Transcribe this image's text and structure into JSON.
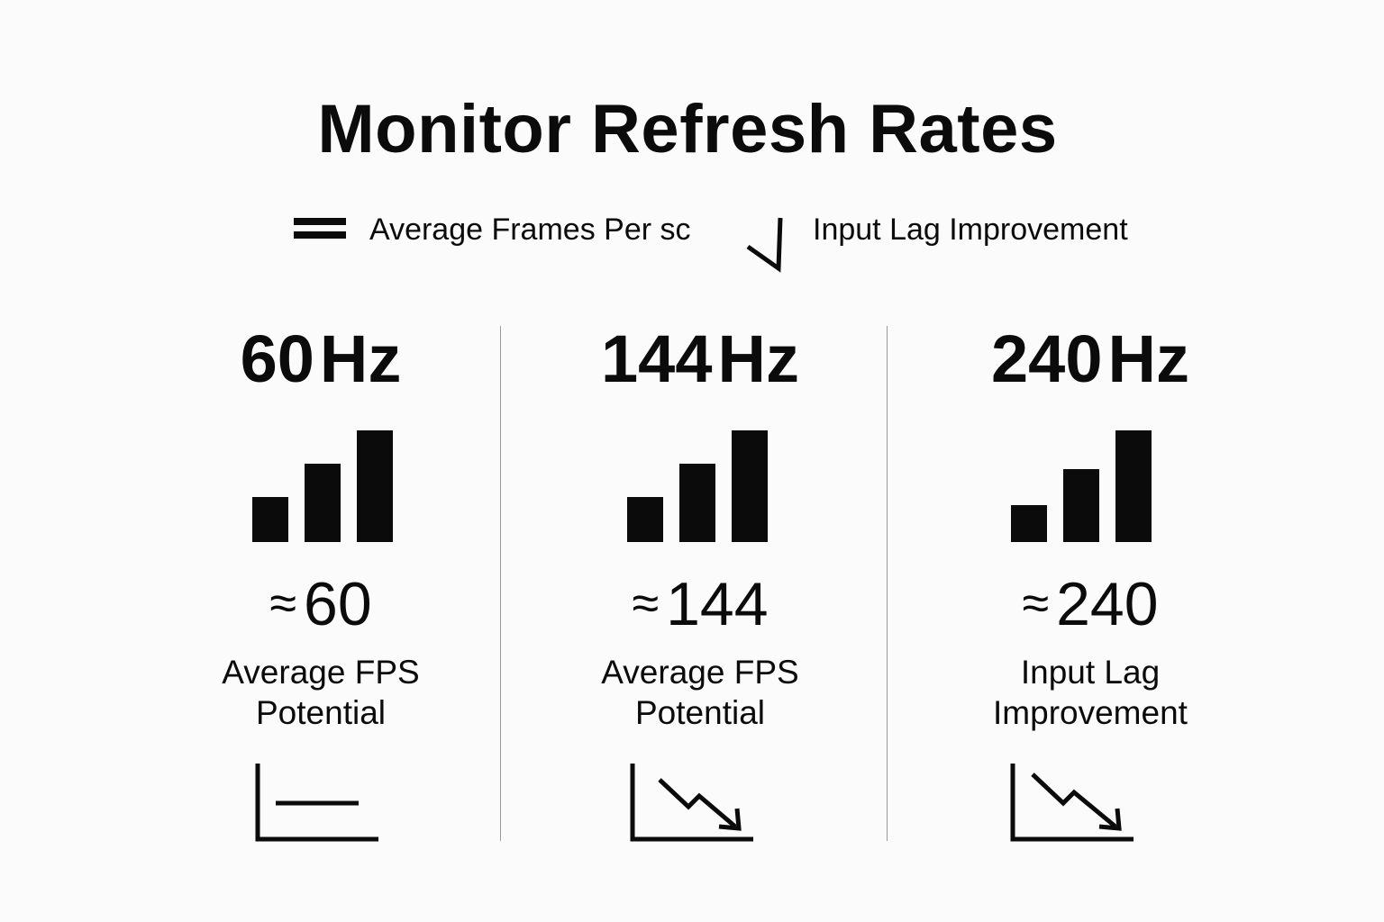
{
  "title": "Monitor Refresh Rates",
  "legend": {
    "fps": {
      "label": "Average Frames Per sc",
      "icon": "double-bar-icon"
    },
    "lag": {
      "label": "Input Lag Improvement",
      "icon": "check-arrow-icon"
    }
  },
  "columns": [
    {
      "refresh_value": "60",
      "refresh_unit": "Hz",
      "approx_symbol": "≈",
      "approx_value": "60",
      "metric_line1": "Average FPS",
      "metric_line2": "Potential",
      "bars_icon": "bar-chart-icon",
      "bar_levels": [
        0.4,
        0.7,
        1.0
      ],
      "trend_icon": "flat-line-chart-icon"
    },
    {
      "refresh_value": "144",
      "refresh_unit": "Hz",
      "approx_symbol": "≈",
      "approx_value": "144",
      "metric_line1": "Average FPS",
      "metric_line2": "Potential",
      "bars_icon": "bar-chart-icon",
      "bar_levels": [
        0.4,
        0.7,
        1.0
      ],
      "trend_icon": "downtrend-chart-icon"
    },
    {
      "refresh_value": "240",
      "refresh_unit": "Hz",
      "approx_symbol": "≈",
      "approx_value": "240",
      "metric_line1": "Input Lag",
      "metric_line2": "Improvement",
      "bars_icon": "bar-chart-icon",
      "bar_levels": [
        0.33,
        0.65,
        1.0
      ],
      "trend_icon": "downtrend-chart-icon"
    }
  ]
}
